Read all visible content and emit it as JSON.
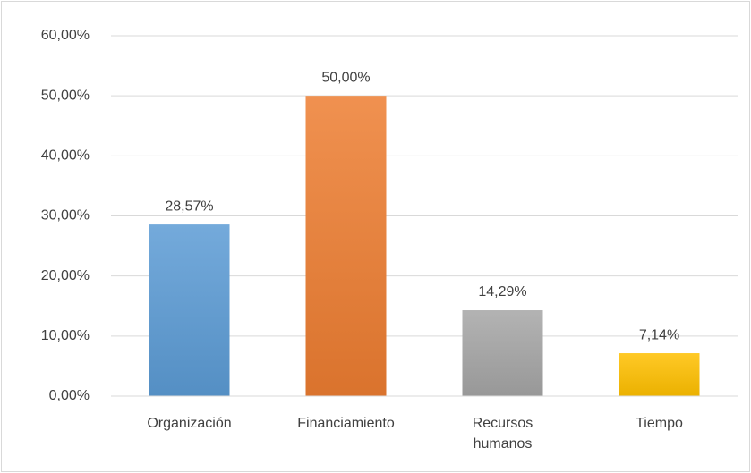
{
  "chart_data": {
    "type": "bar",
    "categories": [
      "Organización",
      "Financiamiento",
      "Recursos humanos",
      "Tiempo"
    ],
    "values": [
      28.57,
      50,
      14.29,
      7.14
    ],
    "value_labels": [
      "28,57%",
      "50,00%",
      "14,29%",
      "7,14%"
    ],
    "colors": [
      "#5b9bd5",
      "#ed7d31",
      "#a5a5a5",
      "#ffc000"
    ],
    "ylim": [
      0,
      60
    ],
    "yticks": [
      {
        "value": 0,
        "label": "0,00%"
      },
      {
        "value": 10,
        "label": "10,00%"
      },
      {
        "value": 20,
        "label": "20,00%"
      },
      {
        "value": 30,
        "label": "30,00%"
      },
      {
        "value": 40,
        "label": "40,00%"
      },
      {
        "value": 50,
        "label": "50,00%"
      },
      {
        "value": 60,
        "label": "60,00%"
      }
    ],
    "grid": true
  }
}
